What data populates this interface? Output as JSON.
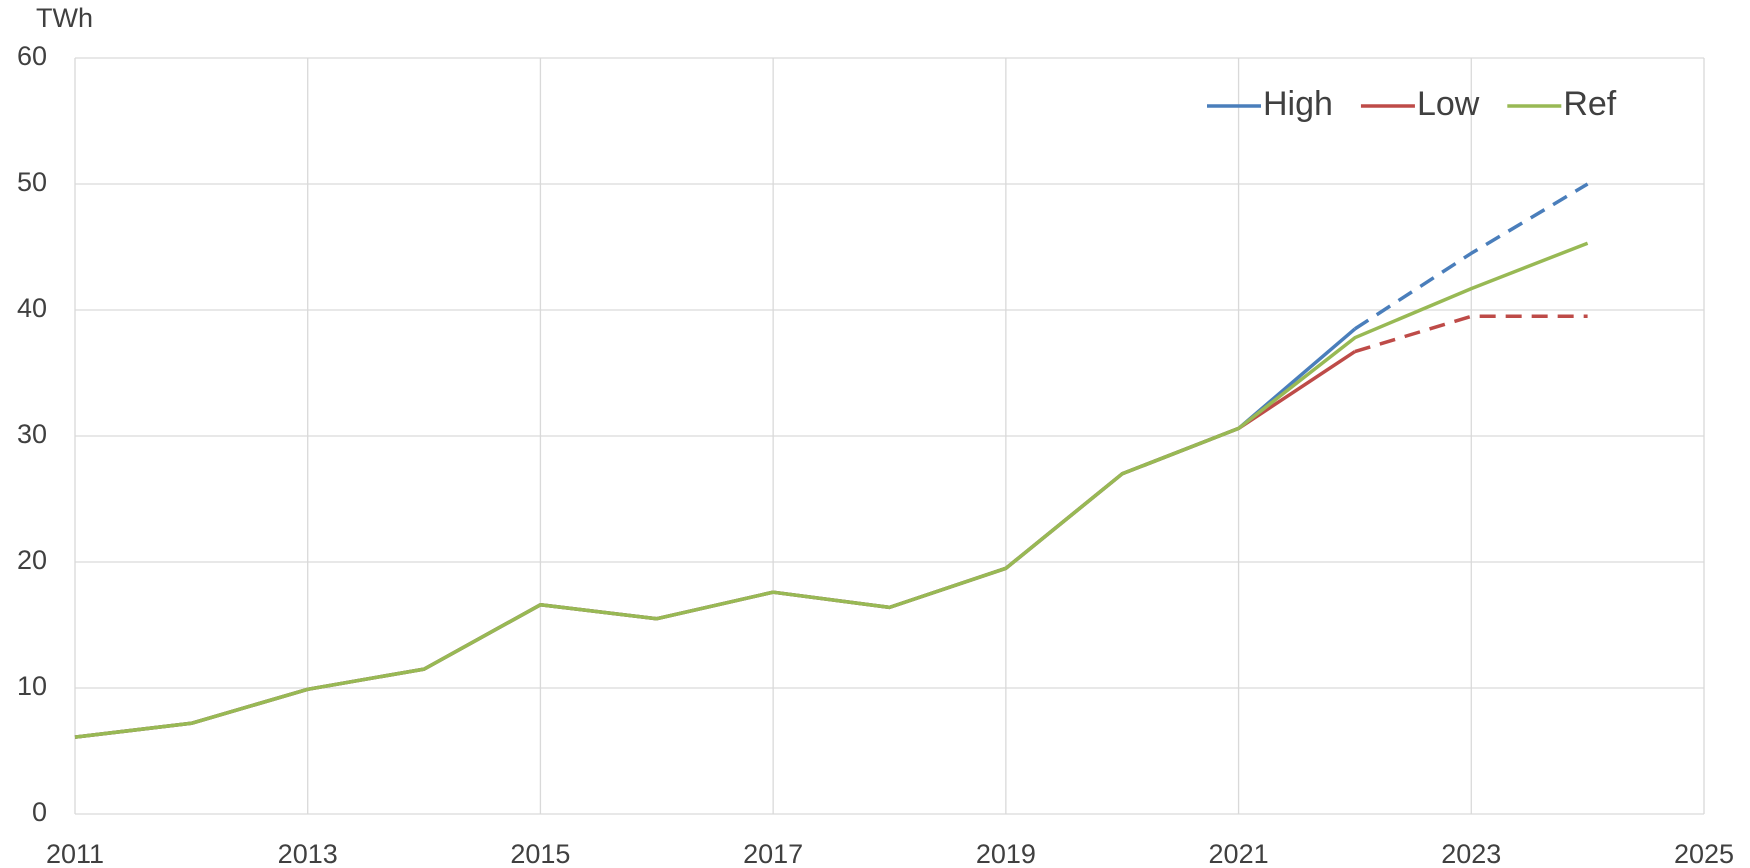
{
  "chart_data": {
    "type": "line",
    "y_label": "TWh",
    "x": [
      2011,
      2012,
      2013,
      2014,
      2015,
      2016,
      2017,
      2018,
      2019,
      2020,
      2021,
      2022,
      2023,
      2024
    ],
    "series": [
      {
        "name": "High",
        "color": "#4a7ebb",
        "dashed_from": 2022,
        "values": [
          6.1,
          7.2,
          9.9,
          11.5,
          16.6,
          15.5,
          17.6,
          16.4,
          19.5,
          27.0,
          30.6,
          38.5,
          44.5,
          50.0
        ]
      },
      {
        "name": "Low",
        "color": "#be4b48",
        "dashed_from": 2022,
        "values": [
          6.1,
          7.2,
          9.9,
          11.5,
          16.6,
          15.5,
          17.6,
          16.4,
          19.5,
          27.0,
          30.6,
          36.7,
          39.5,
          39.5
        ]
      },
      {
        "name": "Ref",
        "color": "#98b954",
        "values": [
          6.1,
          7.2,
          9.9,
          11.5,
          16.6,
          15.5,
          17.6,
          16.4,
          19.5,
          27.0,
          30.6,
          37.8,
          41.7,
          45.3
        ]
      }
    ],
    "xlim": [
      2011,
      2025
    ],
    "xticks": [
      2011,
      2013,
      2015,
      2017,
      2019,
      2021,
      2023,
      2025
    ],
    "ylim": [
      0,
      60
    ],
    "yticks": [
      0,
      10,
      20,
      30,
      40,
      50,
      60
    ],
    "grid": true,
    "legend": "top-right"
  }
}
